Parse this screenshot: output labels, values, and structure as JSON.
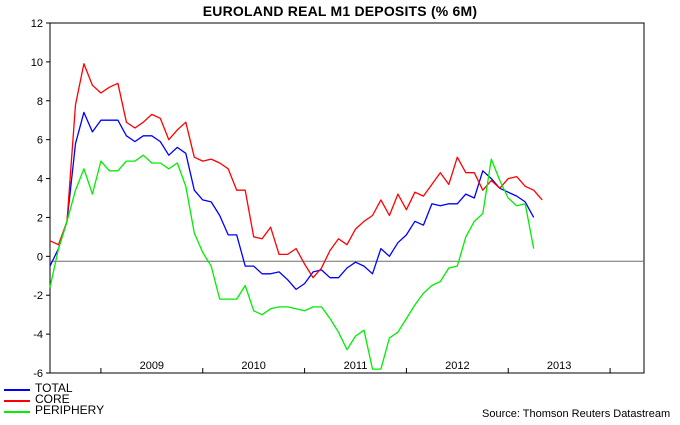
{
  "chart_data": {
    "type": "line",
    "title": "EUROLAND REAL M1 DEPOSITS (% 6M)",
    "xlabel": "",
    "ylabel": "",
    "ylim": [
      -6,
      12
    ],
    "yticks": [
      12,
      10,
      8,
      6,
      4,
      2,
      0,
      -2,
      -4,
      -6
    ],
    "xlim": [
      2008.0,
      2013.833
    ],
    "x_tick_labels": [
      "2009",
      "2010",
      "2011",
      "2012",
      "2013"
    ],
    "x_tick_label_positions": [
      2009.0,
      2010.0,
      2011.0,
      2012.0,
      2013.0
    ],
    "x_ticks": [
      2008.5,
      2009.5,
      2010.5,
      2011.5,
      2012.5,
      2013.5
    ],
    "baseline": -0.25,
    "start": 2008.0,
    "step": 0.08333,
    "series": [
      {
        "name": "TOTAL",
        "color": "#0000ff",
        "values": [
          -0.5,
          0.4,
          1.8,
          5.8,
          7.4,
          6.4,
          7.0,
          7.0,
          7.0,
          6.2,
          5.9,
          6.2,
          6.2,
          5.9,
          5.2,
          5.6,
          5.3,
          3.4,
          2.9,
          2.8,
          2.1,
          1.1,
          1.1,
          -0.5,
          -0.5,
          -0.9,
          -0.9,
          -0.8,
          -1.2,
          -1.7,
          -1.4,
          -0.8,
          -0.7,
          -1.1,
          -1.1,
          -0.6,
          -0.3,
          -0.5,
          -0.9,
          0.4,
          0.0,
          0.7,
          1.1,
          1.8,
          1.6,
          2.7,
          2.6,
          2.7,
          2.7,
          3.2,
          3.0,
          4.4,
          4.0,
          3.5,
          3.3,
          3.1,
          2.8,
          2.0
        ]
      },
      {
        "name": "CORE",
        "color": "#ff0000",
        "values": [
          0.8,
          0.6,
          1.8,
          7.8,
          9.9,
          8.8,
          8.4,
          8.7,
          8.9,
          6.9,
          6.6,
          6.9,
          7.3,
          7.1,
          6.0,
          6.5,
          6.9,
          5.1,
          4.9,
          5.0,
          4.8,
          4.5,
          3.4,
          3.4,
          1.0,
          0.9,
          1.5,
          0.1,
          0.1,
          0.4,
          -0.4,
          -1.1,
          -0.6,
          0.3,
          0.9,
          0.6,
          1.4,
          1.8,
          2.1,
          2.9,
          2.1,
          3.2,
          2.4,
          3.3,
          3.1,
          3.7,
          4.3,
          3.7,
          5.1,
          4.3,
          4.3,
          3.4,
          3.9,
          3.5,
          4.0,
          4.1,
          3.6,
          3.4,
          2.9
        ]
      },
      {
        "name": "PERIPHERY",
        "color": "#00ee00",
        "values": [
          -1.6,
          0.4,
          1.8,
          3.4,
          4.5,
          3.2,
          4.9,
          4.4,
          4.4,
          4.9,
          4.9,
          5.2,
          4.8,
          4.8,
          4.5,
          4.8,
          3.6,
          1.2,
          0.2,
          -0.5,
          -2.2,
          -2.2,
          -2.2,
          -1.5,
          -2.8,
          -3.0,
          -2.7,
          -2.6,
          -2.6,
          -2.7,
          -2.8,
          -2.6,
          -2.6,
          -3.2,
          -3.9,
          -4.8,
          -4.1,
          -3.8,
          -5.8,
          -5.8,
          -4.2,
          -3.9,
          -3.2,
          -2.5,
          -1.9,
          -1.5,
          -1.3,
          -0.6,
          -0.5,
          1.0,
          1.8,
          2.2,
          5.0,
          3.9,
          3.0,
          2.6,
          2.7,
          0.4
        ]
      }
    ],
    "legend": [
      "TOTAL",
      "CORE",
      "PERIPHERY"
    ],
    "source": "Source: Thomson Reuters Datastream"
  }
}
